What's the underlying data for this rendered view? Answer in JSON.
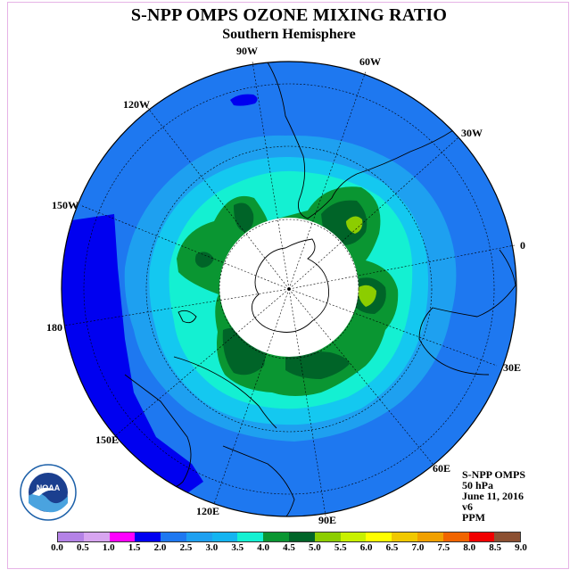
{
  "title": "S-NPP OMPS OZONE MIXING RATIO",
  "subtitle": "Southern Hemisphere",
  "longitude_labels": {
    "lon_90w": "90W",
    "lon_60w": "60W",
    "lon_30w": "30W",
    "lon_0": "0",
    "lon_30e": "30E",
    "lon_60e": "60E",
    "lon_90e": "90E",
    "lon_120e": "120E",
    "lon_150e": "150E",
    "lon_180": "180",
    "lon_150w": "150W",
    "lon_120w": "120W"
  },
  "info": {
    "instrument": "S-NPP OMPS",
    "level": "50 hPa",
    "date": "June 11, 2016",
    "version": "v6",
    "units": "PPM"
  },
  "logo": {
    "text": "NOAA",
    "ring_text": "NATIONAL OCEANIC AND ATMOSPHERIC ADMINISTRATION U.S. DEPARTMENT OF COMMERCE"
  },
  "legend": {
    "labels": [
      "0.0",
      "0.5",
      "1.0",
      "1.5",
      "2.0",
      "2.5",
      "3.0",
      "3.5",
      "4.0",
      "4.5",
      "5.0",
      "5.5",
      "6.0",
      "6.5",
      "7.0",
      "7.5",
      "8.0",
      "8.5",
      "9.0"
    ],
    "colors": [
      "#b482e6",
      "#dca0f0",
      "#ff00ff",
      "#ff00ff",
      "#0000f0",
      "#1e78f0",
      "#1ea0f0",
      "#14c8f0",
      "#14f0d2",
      "#0a9632",
      "#006428",
      "#8ccd00",
      "#c8f000",
      "#ffff00",
      "#f0c800",
      "#f0a000",
      "#f06400",
      "#f00000",
      "#8c5032"
    ],
    "cell_colors": [
      "#b482e6",
      "#d7a5f0",
      "#ff00ff",
      "#0000f0",
      "#1e78f0",
      "#1ea0f0",
      "#14b4f0",
      "#14f0d2",
      "#0a9632",
      "#006428",
      "#8ccd00",
      "#c8f000",
      "#ffff00",
      "#f0c800",
      "#f0a000",
      "#f06400",
      "#f00000",
      "#8c5032"
    ]
  },
  "colors": {
    "background_ocean": "#1e78f0",
    "band_3_0": "#1ea0f0",
    "band_3_5": "#14c8f0",
    "band_4_0": "#14f0d2",
    "band_4_5": "#0a9632",
    "band_5_0": "#006428",
    "band_5_5": "#8ccd00",
    "band_2_0": "#0000f0"
  }
}
